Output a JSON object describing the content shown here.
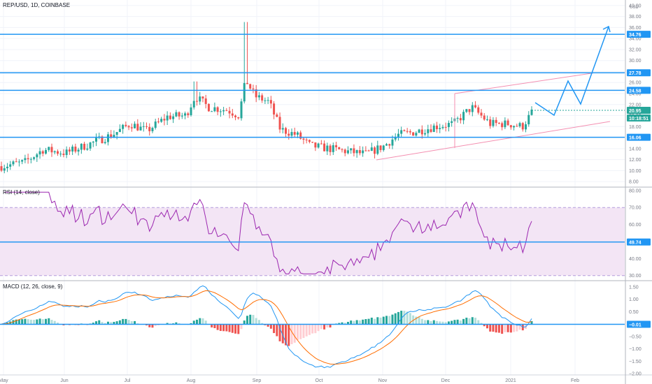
{
  "header": {
    "symbol_title": "REP/USD, 1D, COINBASE"
  },
  "price_pane": {
    "currency": "USD",
    "y_ticks": [
      8,
      10,
      12,
      14,
      16,
      18,
      20,
      22,
      24,
      26,
      28,
      30,
      32,
      34,
      36,
      38,
      40
    ],
    "current_price": "20.95",
    "countdown": "10:18:51",
    "levels": [
      {
        "label": "34.76",
        "value": 34.76
      },
      {
        "label": "27.78",
        "value": 27.78
      },
      {
        "label": "24.58",
        "value": 24.58
      },
      {
        "label": "16.06",
        "value": 16.06
      }
    ]
  },
  "rsi_pane": {
    "title": "RSI (14, close)",
    "y_ticks": [
      30,
      40,
      50,
      60,
      70,
      80
    ],
    "value_label": "49.74",
    "value": 49.74,
    "band_upper": 70,
    "band_lower": 30
  },
  "macd_pane": {
    "title": "MACD (12, 26, close, 9)",
    "y_ticks": [
      -2.0,
      -1.5,
      -1.0,
      -0.5,
      0.5,
      1.0,
      1.5
    ],
    "y_tick_labels": [
      "−2.00",
      "−1.50",
      "−1.00",
      "−0.50",
      "0.50",
      "1.00",
      "1.50"
    ],
    "value_label": "−0.01",
    "value": -0.01
  },
  "time_axis": {
    "labels": [
      "May",
      "Jun",
      "Jul",
      "Aug",
      "Sep",
      "Oct",
      "Nov",
      "Dec",
      "2021",
      "Feb"
    ]
  },
  "colors": {
    "up": "#26a69a",
    "down": "#ef5350",
    "level_line": "#2196f3",
    "trend_line": "#f48fb1",
    "rsi_line": "#9c27b0",
    "rsi_band": "#f3e5f5",
    "macd_line": "#2196f3",
    "signal_line": "#ff6d00"
  },
  "chart_data": [
    {
      "type": "candlestick",
      "title": "REP/USD, 1D, COINBASE",
      "x_labels": [
        "May",
        "Jun",
        "Jul",
        "Aug",
        "Sep",
        "Oct",
        "Nov",
        "Dec",
        "2021",
        "Feb"
      ],
      "close_path": [
        {
          "t": "May",
          "v": 11.0
        },
        {
          "t": "mid-May",
          "v": 13.5
        },
        {
          "t": "Jun",
          "v": 15.0
        },
        {
          "t": "mid-Jun",
          "v": 18.0
        },
        {
          "t": "Jul",
          "v": 20.0
        },
        {
          "t": "late-Jul",
          "v": 23.0
        },
        {
          "t": "Aug",
          "v": 21.0
        },
        {
          "t": "mid-Aug",
          "v": 28.0
        },
        {
          "t": "late-Aug",
          "v": 24.5
        },
        {
          "t": "Sep",
          "v": 17.0
        },
        {
          "t": "mid-Sep",
          "v": 15.0
        },
        {
          "t": "Oct",
          "v": 14.0
        },
        {
          "t": "Nov",
          "v": 13.0
        },
        {
          "t": "Dec",
          "v": 18.5
        },
        {
          "t": "late-Dec",
          "v": 18.0
        },
        {
          "t": "2021",
          "v": 20.95
        }
      ],
      "spike_high": 37.0,
      "ylim": [
        7,
        41
      ]
    },
    {
      "type": "line",
      "title": "RSI (14, close)",
      "ylim": [
        27,
        82
      ],
      "series": [
        {
          "values": [
            62,
            70,
            63,
            66,
            72,
            62,
            66,
            60,
            70,
            66,
            60,
            78,
            58,
            44,
            38,
            42,
            38,
            42,
            40,
            36,
            58,
            64,
            52,
            62,
            56,
            50,
            66
          ]
        }
      ]
    },
    {
      "type": "bar+line",
      "title": "MACD (12, 26, close, 9)",
      "ylim": [
        -2.05,
        1.75
      ]
    }
  ]
}
